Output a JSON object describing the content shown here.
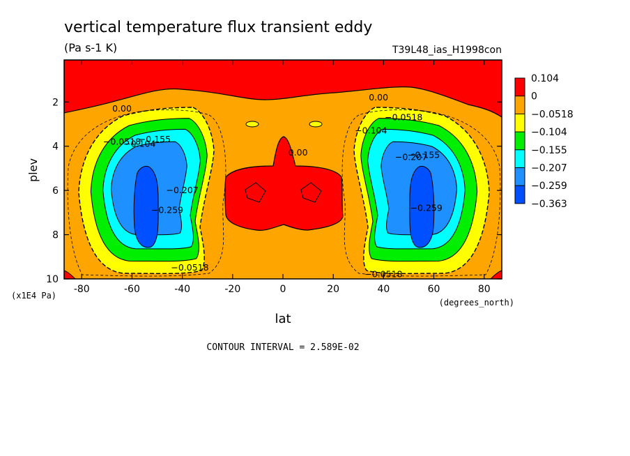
{
  "chart_data": {
    "type": "heatmap",
    "title": "vertical temperature flux transient eddy",
    "units": "(Pa s-1 K)",
    "run_label": "T39L48_ias_H1998con",
    "xlabel": "lat",
    "xunits": "(degrees_north)",
    "ylabel": "plev",
    "yunits": "(x1E4 Pa)",
    "xlim": [
      -87,
      87
    ],
    "ylim": [
      10,
      0.1
    ],
    "y_inverted": true,
    "x_ticks": [
      -80,
      -60,
      -40,
      -20,
      0,
      20,
      40,
      60,
      80
    ],
    "y_ticks": [
      2,
      4,
      6,
      8,
      10
    ],
    "grid": false,
    "colorbar": {
      "placement": "right",
      "labels": [
        "0.104",
        "0",
        "−0.0518",
        "−0.104",
        "−0.155",
        "−0.207",
        "−0.259",
        "−0.363"
      ],
      "colors": [
        "#ff0000",
        "#ffa500",
        "#ffff00",
        "#00ee00",
        "#00ffff",
        "#1e90ff",
        "#0050ff"
      ]
    },
    "contour_labels": [
      {
        "text": "0.00",
        "lat": -64,
        "plev": 2.3
      },
      {
        "text": "0.00",
        "lat": 38,
        "plev": 1.8
      },
      {
        "text": "0.00",
        "lat": 6,
        "plev": 4.3
      },
      {
        "text": "−0.0518",
        "lat": -64,
        "plev": 3.8
      },
      {
        "text": "−0.104",
        "lat": -57,
        "plev": 3.9
      },
      {
        "text": "−0.155",
        "lat": -51,
        "plev": 3.7
      },
      {
        "text": "−0.259",
        "lat": -46,
        "plev": 6.9
      },
      {
        "text": "−0.207",
        "lat": -40,
        "plev": 6.0
      },
      {
        "text": "−0.0518",
        "lat": -37,
        "plev": 9.5
      },
      {
        "text": "−0.0518",
        "lat": 48,
        "plev": 2.7
      },
      {
        "text": "−0.104",
        "lat": 35,
        "plev": 3.3
      },
      {
        "text": "−0.155",
        "lat": 56,
        "plev": 4.4
      },
      {
        "text": "−0.207",
        "lat": 51,
        "plev": 4.5
      },
      {
        "text": "−0.259",
        "lat": 57,
        "plev": 6.8
      },
      {
        "text": "−0.0518",
        "lat": 40,
        "plev": 9.8
      }
    ]
  },
  "footer": {
    "contour_interval": "CONTOUR INTERVAL = 2.589E-02"
  },
  "colors": {
    "red": "#ff0000",
    "orange": "#ffa500",
    "yellow": "#ffff00",
    "green": "#00ee00",
    "cyan": "#00ffff",
    "lightblue": "#1e90ff",
    "blue": "#0050ff"
  }
}
